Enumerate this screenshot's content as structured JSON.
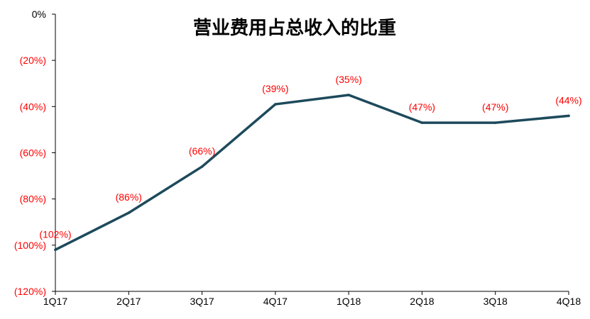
{
  "chart_data": {
    "type": "line",
    "title": "营业费用占总收入的比重",
    "xlabel": "",
    "ylabel": "",
    "categories": [
      "1Q17",
      "2Q17",
      "3Q17",
      "4Q17",
      "1Q18",
      "2Q18",
      "3Q18",
      "4Q18"
    ],
    "series": [
      {
        "values": [
          -102,
          -86,
          -66,
          -39,
          -35,
          -47,
          -47,
          -44
        ],
        "labels": [
          "(102%)",
          "(86%)",
          "(66%)",
          "(39%)",
          "(35%)",
          "(47%)",
          "(47%)",
          "(44%)"
        ]
      }
    ],
    "ylim": [
      -120,
      0
    ],
    "yticks": [
      -120,
      -100,
      -80,
      -60,
      -40,
      -20,
      0
    ],
    "ytick_labels": [
      "(120%)",
      "(100%)",
      "(80%)",
      "(60%)",
      "(40%)",
      "(20%)",
      "0%"
    ],
    "grid": false,
    "legend": "none",
    "colors": {
      "line": "#1d4a5c",
      "label": "#ff0000",
      "axis": "#000000",
      "zero_label": "#000000"
    }
  }
}
